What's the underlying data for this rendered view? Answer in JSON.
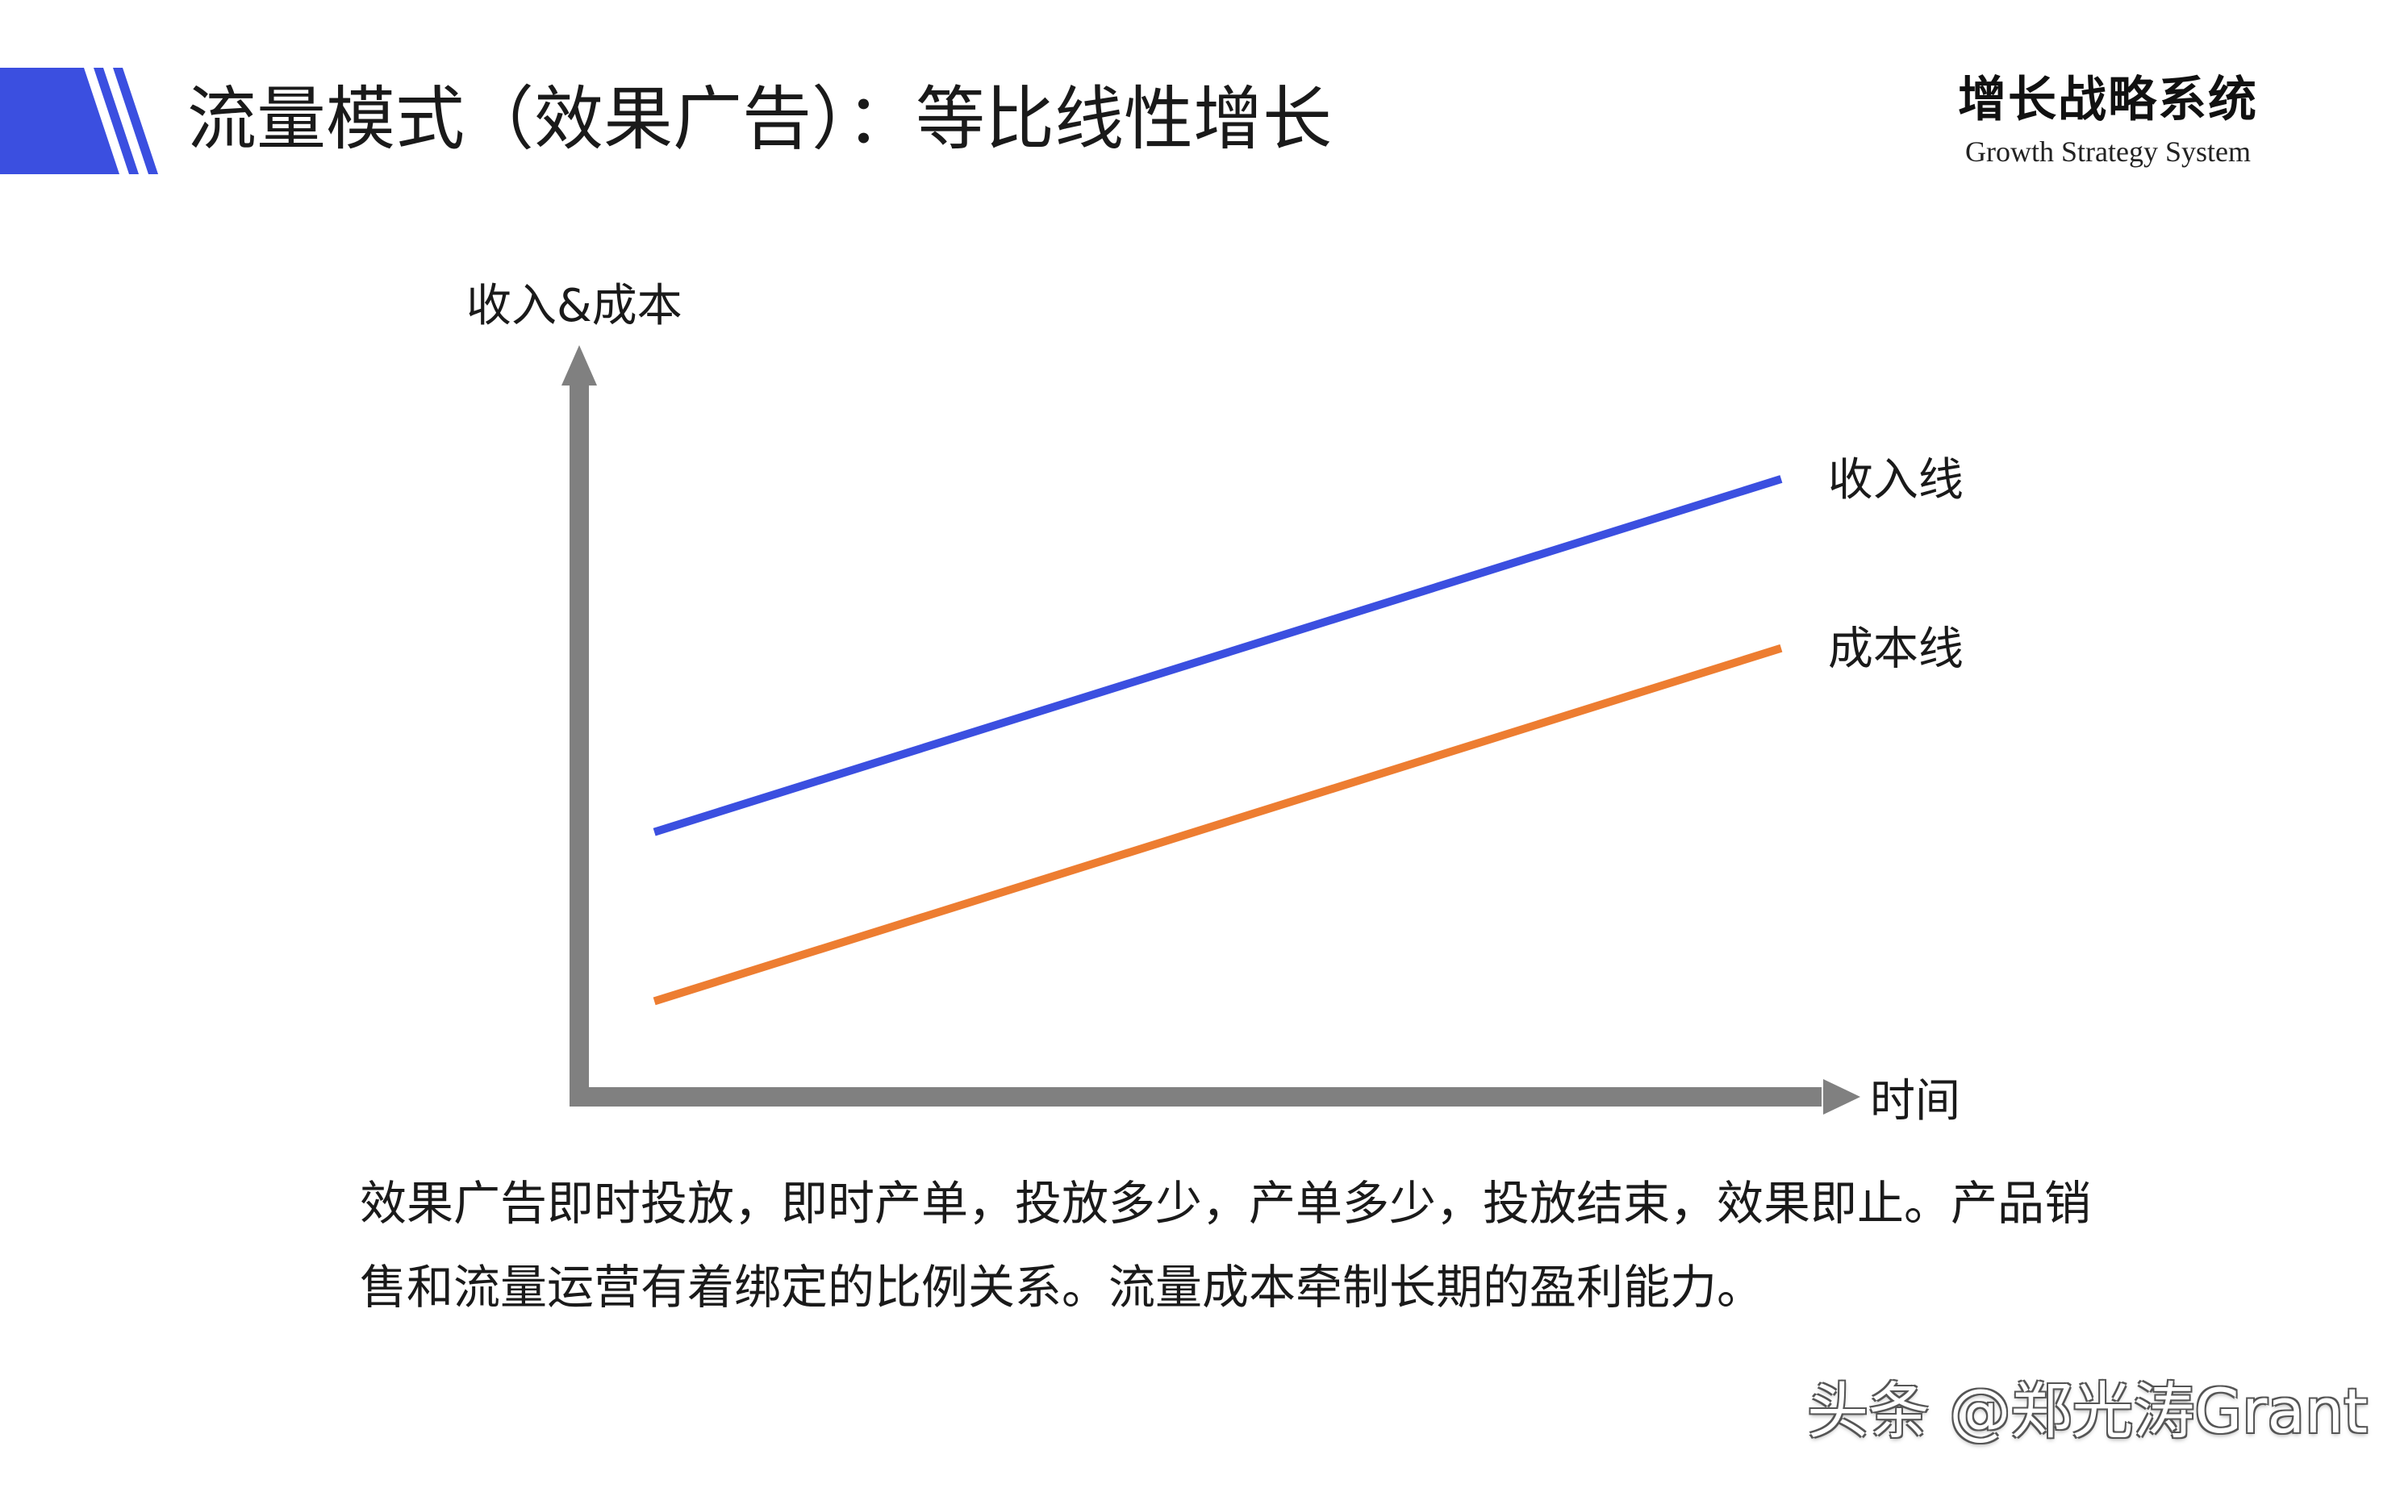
{
  "header": {
    "title": "流量模式（效果广告）：等比线性增长",
    "brand_cn": "增长战略系统",
    "brand_en": "Growth Strategy System"
  },
  "colors": {
    "accent": "#3b4fe0",
    "revenue_line": "#3b4fe0",
    "cost_line": "#ed7d31",
    "axis": "#808080"
  },
  "chart_data": {
    "type": "line",
    "ylabel": "收入&成本",
    "xlabel": "时间",
    "xlim": [
      0,
      1
    ],
    "ylim": [
      0,
      1
    ],
    "grid": false,
    "series": [
      {
        "name": "收入线",
        "x": [
          0.06,
          0.96
        ],
        "y": [
          0.36,
          0.84
        ]
      },
      {
        "name": "成本线",
        "x": [
          0.06,
          0.96
        ],
        "y": [
          0.13,
          0.61
        ]
      }
    ]
  },
  "caption": {
    "text": "效果广告即时投放，即时产单，投放多少，产单多少，投放结束，效果即止。产品销售和流量运营有着绑定的比例关系。流量成本牵制长期的盈利能力。"
  },
  "watermark": {
    "text": "头条 @郑光涛Grant"
  }
}
